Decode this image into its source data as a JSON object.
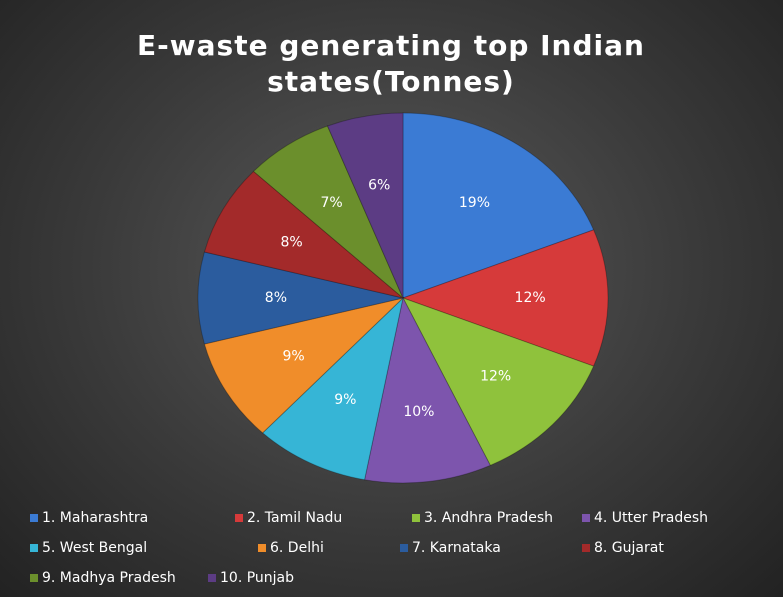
{
  "chart_data": {
    "type": "pie",
    "title": "E-waste generating top Indian states(Tonnes)",
    "categories": [
      "1. Maharashtra",
      "2. Tamil Nadu",
      "3. Andhra Pradesh",
      "4. Utter Pradesh",
      "5. West Bengal",
      "6. Delhi",
      "7. Karnataka",
      "8. Gujarat",
      "9. Madhya Pradesh",
      "10. Punjab"
    ],
    "values": [
      19,
      12,
      12,
      10,
      9,
      9,
      8,
      8,
      7,
      6
    ],
    "value_labels": [
      "19%",
      "12%",
      "12%",
      "10%",
      "9%",
      "9%",
      "8%",
      "8%",
      "7%",
      "6%"
    ],
    "colors": [
      "#3b7bd4",
      "#d63a3a",
      "#8fc23c",
      "#7d55ad",
      "#36b5d6",
      "#f08d2a",
      "#2b5c9e",
      "#a32a2a",
      "#6b8f2c",
      "#5c3c84"
    ],
    "legend": "bottom"
  }
}
